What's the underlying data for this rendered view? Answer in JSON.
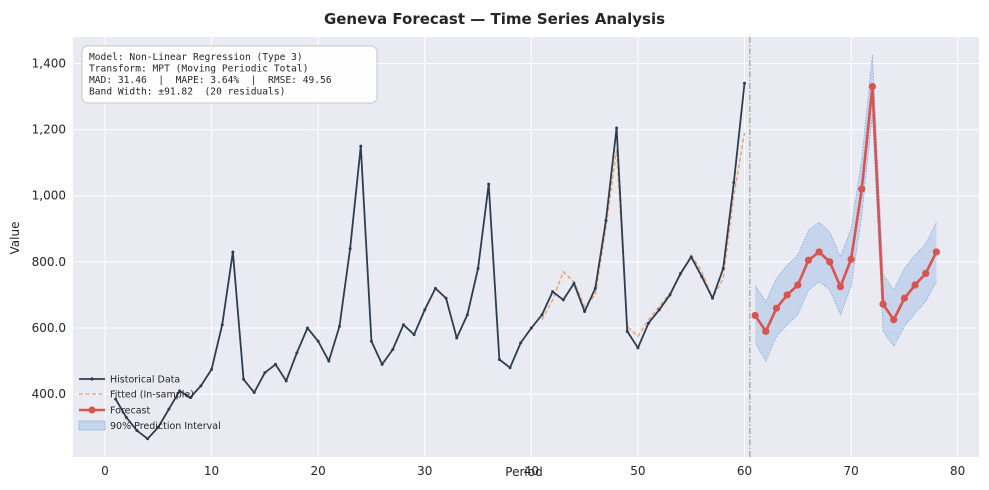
{
  "chart_data": {
    "type": "line",
    "title": "Geneva Forecast — Time Series Analysis",
    "xlabel": "Period",
    "ylabel": "Value",
    "xlim": [
      -3,
      82
    ],
    "ylim": [
      210,
      1480
    ],
    "x_ticks": [
      0,
      10,
      20,
      30,
      40,
      50,
      60,
      70,
      80
    ],
    "x_tick_labels": [
      "0",
      "10",
      "20",
      "30",
      "40",
      "50",
      "60",
      "70",
      "80"
    ],
    "y_ticks": [
      400,
      600,
      800,
      1000,
      1200,
      1400
    ],
    "y_tick_labels": [
      "400.0",
      "600.0",
      "800.0",
      "1,000",
      "1,200",
      "1,400"
    ],
    "grid": true,
    "forecast_origin": 60.5,
    "legend": {
      "position": "lower-left",
      "entries": [
        "Historical Data",
        "Fitted (In-sample)",
        "Forecast",
        "90% Prediction Interval"
      ]
    },
    "info_box": [
      "Model: Non-Linear Regression (Type 3)",
      "Transform: MPT (Moving Periodic Total)",
      "MAD: 31.46  |  MAPE: 3.64%  |  RMSE: 49.56",
      "Band Width: ±91.82  (20 residuals)"
    ],
    "colors": {
      "historical": "#2c3e50",
      "fitted": "#e8a06a",
      "forecast": "#d9534f",
      "interval_fill": "#aec7e8",
      "interval_edge": "#6fa8dc",
      "background": "#eaeaf2",
      "grid": "#ffffff"
    },
    "series": [
      {
        "name": "Historical Data",
        "x": [
          1,
          2,
          3,
          4,
          5,
          6,
          7,
          8,
          9,
          10,
          11,
          12,
          13,
          14,
          15,
          16,
          17,
          18,
          19,
          20,
          21,
          22,
          23,
          24,
          25,
          26,
          27,
          28,
          29,
          30,
          31,
          32,
          33,
          34,
          35,
          36,
          37,
          38,
          39,
          40,
          41,
          42,
          43,
          44,
          45,
          46,
          47,
          48,
          49,
          50,
          51,
          52,
          53,
          54,
          55,
          56,
          57,
          58,
          59,
          60
        ],
        "values": [
          385,
          330,
          290,
          265,
          300,
          355,
          410,
          390,
          425,
          475,
          610,
          830,
          445,
          405,
          465,
          490,
          440,
          525,
          600,
          560,
          500,
          605,
          840,
          1150,
          560,
          490,
          535,
          610,
          580,
          655,
          720,
          690,
          570,
          640,
          780,
          1035,
          505,
          480,
          555,
          600,
          640,
          710,
          685,
          735,
          650,
          720,
          925,
          1205,
          590,
          540,
          615,
          655,
          700,
          765,
          815,
          755,
          690,
          780,
          1040,
          1340
        ]
      },
      {
        "name": "Fitted (In-sample)",
        "x": [
          41,
          42,
          43,
          44,
          45,
          46,
          47,
          48,
          49,
          50,
          51,
          52,
          53,
          54,
          55,
          56,
          57,
          58,
          59,
          60
        ],
        "values": [
          625,
          685,
          770,
          740,
          665,
          700,
          905,
          1140,
          605,
          575,
          625,
          665,
          705,
          760,
          820,
          770,
          690,
          750,
          1000,
          1190
        ]
      },
      {
        "name": "Forecast",
        "x": [
          61,
          62,
          63,
          64,
          65,
          66,
          67,
          68,
          69,
          70,
          71,
          72,
          73,
          74,
          75,
          76,
          77,
          78
        ],
        "values": [
          638,
          590,
          660,
          700,
          730,
          805,
          830,
          800,
          725,
          808,
          1020,
          1330,
          672,
          625,
          690,
          730,
          765,
          830
        ],
        "lower": [
          555,
          500,
          575,
          610,
          640,
          715,
          740,
          715,
          640,
          725,
          940,
          1245,
          590,
          545,
          605,
          645,
          680,
          740
        ],
        "upper": [
          728,
          680,
          750,
          790,
          820,
          895,
          920,
          890,
          815,
          900,
          1110,
          1425,
          762,
          715,
          780,
          820,
          855,
          920
        ]
      }
    ]
  }
}
